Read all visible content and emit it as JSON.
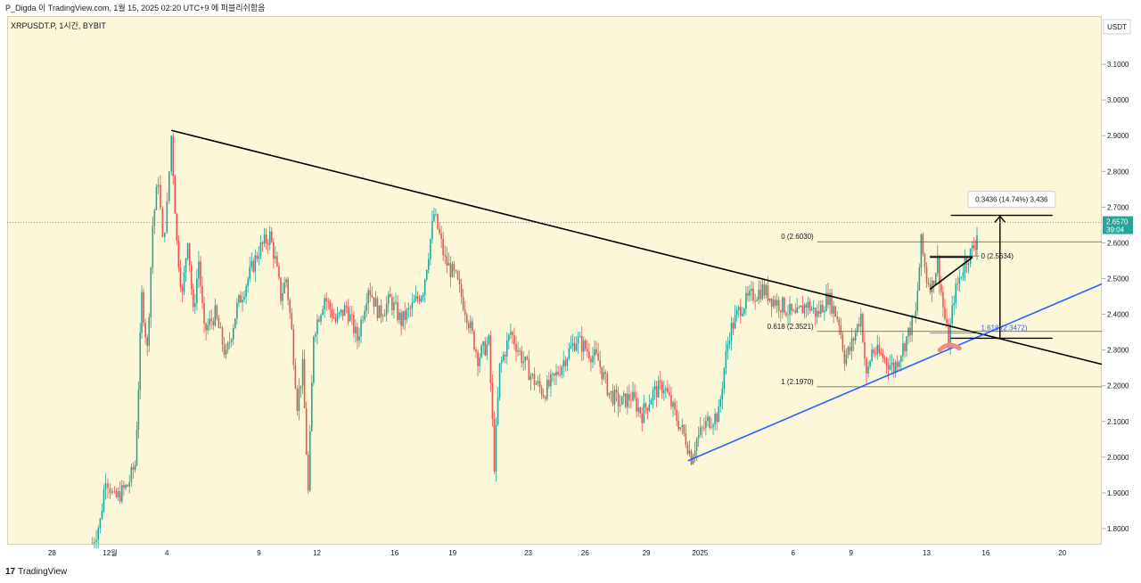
{
  "header": {
    "publish_line": "P_Digda 이 TradingView.com, 1월 15, 2025 02:20 UTC+9 에 퍼블리쉬함음"
  },
  "footer": {
    "brand": "TradingView",
    "logo_glyph": "17"
  },
  "colors": {
    "background": "#fdf7d9",
    "up_candle": "#26a69a",
    "down_candle": "#ef5350",
    "trendline": "#000000",
    "support_line": "#2962ff",
    "price_label_bg": "#26a69a",
    "highlight": "#f28b82"
  },
  "chart_data": {
    "type": "candlestick",
    "symbol_label": "XRPUSDT.P, 1시간, BYBIT",
    "currency_label": "USDT",
    "y_ticks": [
      "3.1000",
      "3.0000",
      "2.9000",
      "2.8000",
      "2.7000",
      "2.6000",
      "2.5000",
      "2.4000",
      "2.3000",
      "2.2000",
      "2.1000",
      "2.0000",
      "1.9000",
      "1.8000"
    ],
    "ylim": [
      1.755,
      3.235
    ],
    "x_ticks": [
      "28",
      "12월",
      "4",
      "9",
      "12",
      "16",
      "19",
      "23",
      "26",
      "29",
      "2025",
      "6",
      "9",
      "13",
      "16",
      "20"
    ],
    "last_price": {
      "value": "2.6570",
      "countdown": "39:04"
    },
    "price_path": [
      {
        "x": 0.078,
        "y": 1.76
      },
      {
        "x": 0.085,
        "y": 1.82
      },
      {
        "x": 0.09,
        "y": 1.95
      },
      {
        "x": 0.098,
        "y": 1.88
      },
      {
        "x": 0.11,
        "y": 1.92
      },
      {
        "x": 0.117,
        "y": 1.98
      },
      {
        "x": 0.12,
        "y": 2.2
      },
      {
        "x": 0.123,
        "y": 2.45
      },
      {
        "x": 0.128,
        "y": 2.3
      },
      {
        "x": 0.133,
        "y": 2.65
      },
      {
        "x": 0.138,
        "y": 2.78
      },
      {
        "x": 0.142,
        "y": 2.6
      },
      {
        "x": 0.146,
        "y": 2.7
      },
      {
        "x": 0.15,
        "y": 2.9
      },
      {
        "x": 0.155,
        "y": 2.6
      },
      {
        "x": 0.16,
        "y": 2.45
      },
      {
        "x": 0.165,
        "y": 2.62
      },
      {
        "x": 0.17,
        "y": 2.4
      },
      {
        "x": 0.175,
        "y": 2.55
      },
      {
        "x": 0.18,
        "y": 2.35
      },
      {
        "x": 0.19,
        "y": 2.4
      },
      {
        "x": 0.2,
        "y": 2.28
      },
      {
        "x": 0.21,
        "y": 2.42
      },
      {
        "x": 0.22,
        "y": 2.5
      },
      {
        "x": 0.23,
        "y": 2.58
      },
      {
        "x": 0.24,
        "y": 2.62
      },
      {
        "x": 0.245,
        "y": 2.55
      },
      {
        "x": 0.25,
        "y": 2.45
      },
      {
        "x": 0.255,
        "y": 2.5
      },
      {
        "x": 0.26,
        "y": 2.35
      },
      {
        "x": 0.265,
        "y": 2.15
      },
      {
        "x": 0.27,
        "y": 2.25
      },
      {
        "x": 0.275,
        "y": 1.9
      },
      {
        "x": 0.28,
        "y": 2.35
      },
      {
        "x": 0.29,
        "y": 2.45
      },
      {
        "x": 0.3,
        "y": 2.38
      },
      {
        "x": 0.31,
        "y": 2.42
      },
      {
        "x": 0.32,
        "y": 2.33
      },
      {
        "x": 0.33,
        "y": 2.48
      },
      {
        "x": 0.34,
        "y": 2.4
      },
      {
        "x": 0.35,
        "y": 2.44
      },
      {
        "x": 0.36,
        "y": 2.38
      },
      {
        "x": 0.37,
        "y": 2.42
      },
      {
        "x": 0.38,
        "y": 2.47
      },
      {
        "x": 0.39,
        "y": 2.68
      },
      {
        "x": 0.395,
        "y": 2.62
      },
      {
        "x": 0.4,
        "y": 2.55
      },
      {
        "x": 0.41,
        "y": 2.5
      },
      {
        "x": 0.42,
        "y": 2.4
      },
      {
        "x": 0.43,
        "y": 2.28
      },
      {
        "x": 0.44,
        "y": 2.32
      },
      {
        "x": 0.445,
        "y": 1.98
      },
      {
        "x": 0.45,
        "y": 2.25
      },
      {
        "x": 0.46,
        "y": 2.35
      },
      {
        "x": 0.47,
        "y": 2.28
      },
      {
        "x": 0.48,
        "y": 2.22
      },
      {
        "x": 0.49,
        "y": 2.18
      },
      {
        "x": 0.5,
        "y": 2.22
      },
      {
        "x": 0.51,
        "y": 2.28
      },
      {
        "x": 0.52,
        "y": 2.33
      },
      {
        "x": 0.53,
        "y": 2.3
      },
      {
        "x": 0.54,
        "y": 2.27
      },
      {
        "x": 0.55,
        "y": 2.18
      },
      {
        "x": 0.56,
        "y": 2.15
      },
      {
        "x": 0.57,
        "y": 2.17
      },
      {
        "x": 0.58,
        "y": 2.12
      },
      {
        "x": 0.59,
        "y": 2.18
      },
      {
        "x": 0.6,
        "y": 2.2
      },
      {
        "x": 0.61,
        "y": 2.12
      },
      {
        "x": 0.62,
        "y": 2.05
      },
      {
        "x": 0.625,
        "y": 2.0
      },
      {
        "x": 0.63,
        "y": 2.05
      },
      {
        "x": 0.64,
        "y": 2.1
      },
      {
        "x": 0.65,
        "y": 2.12
      },
      {
        "x": 0.655,
        "y": 2.25
      },
      {
        "x": 0.66,
        "y": 2.35
      },
      {
        "x": 0.67,
        "y": 2.42
      },
      {
        "x": 0.68,
        "y": 2.45
      },
      {
        "x": 0.69,
        "y": 2.47
      },
      {
        "x": 0.7,
        "y": 2.44
      },
      {
        "x": 0.71,
        "y": 2.42
      },
      {
        "x": 0.72,
        "y": 2.39
      },
      {
        "x": 0.73,
        "y": 2.43
      },
      {
        "x": 0.74,
        "y": 2.4
      },
      {
        "x": 0.75,
        "y": 2.45
      },
      {
        "x": 0.76,
        "y": 2.38
      },
      {
        "x": 0.765,
        "y": 2.28
      },
      {
        "x": 0.77,
        "y": 2.3
      },
      {
        "x": 0.78,
        "y": 2.4
      },
      {
        "x": 0.785,
        "y": 2.22
      },
      {
        "x": 0.79,
        "y": 2.3
      },
      {
        "x": 0.8,
        "y": 2.28
      },
      {
        "x": 0.81,
        "y": 2.25
      },
      {
        "x": 0.82,
        "y": 2.32
      },
      {
        "x": 0.83,
        "y": 2.4
      },
      {
        "x": 0.835,
        "y": 2.6
      },
      {
        "x": 0.84,
        "y": 2.5
      },
      {
        "x": 0.845,
        "y": 2.48
      },
      {
        "x": 0.85,
        "y": 2.55
      },
      {
        "x": 0.855,
        "y": 2.42
      },
      {
        "x": 0.86,
        "y": 2.32
      },
      {
        "x": 0.865,
        "y": 2.45
      },
      {
        "x": 0.87,
        "y": 2.5
      },
      {
        "x": 0.875,
        "y": 2.55
      },
      {
        "x": 0.88,
        "y": 2.57
      },
      {
        "x": 0.885,
        "y": 2.6
      },
      {
        "x": 0.887,
        "y": 2.66
      }
    ],
    "trendlines": [
      {
        "name": "descending-resistance",
        "p1": [
          0.15,
          2.915
        ],
        "p2": [
          1.0,
          2.26
        ]
      },
      {
        "name": "ascending-support",
        "p1": [
          0.622,
          1.99
        ],
        "p2": [
          1.0,
          2.485
        ]
      },
      {
        "name": "wedge-upper",
        "p1": [
          0.843,
          2.56
        ],
        "p2": [
          0.882,
          2.56
        ]
      },
      {
        "name": "wedge-lower",
        "p1": [
          0.843,
          2.47
        ],
        "p2": [
          0.882,
          2.56
        ]
      }
    ],
    "fib_levels": [
      {
        "label": "0 (2.6030)",
        "value": 2.603
      },
      {
        "label": "0.618 (2.3521)",
        "value": 2.3521
      },
      {
        "label": "1 (2.1970)",
        "value": 2.197
      }
    ],
    "fib_range": [
      0.74,
      1.0
    ],
    "fib2_levels": [
      {
        "label": "0 (2.5634)",
        "value": 2.5634
      },
      {
        "label": "1.618 (2.3472)",
        "value": 2.3472
      }
    ],
    "fib2_range": [
      0.843,
      0.888
    ],
    "measure": {
      "label": "0.3436 (14.74%) 3,436",
      "x": 0.907,
      "from": 2.333,
      "to": 2.677,
      "bracket_range": [
        0.862,
        0.955
      ]
    }
  }
}
